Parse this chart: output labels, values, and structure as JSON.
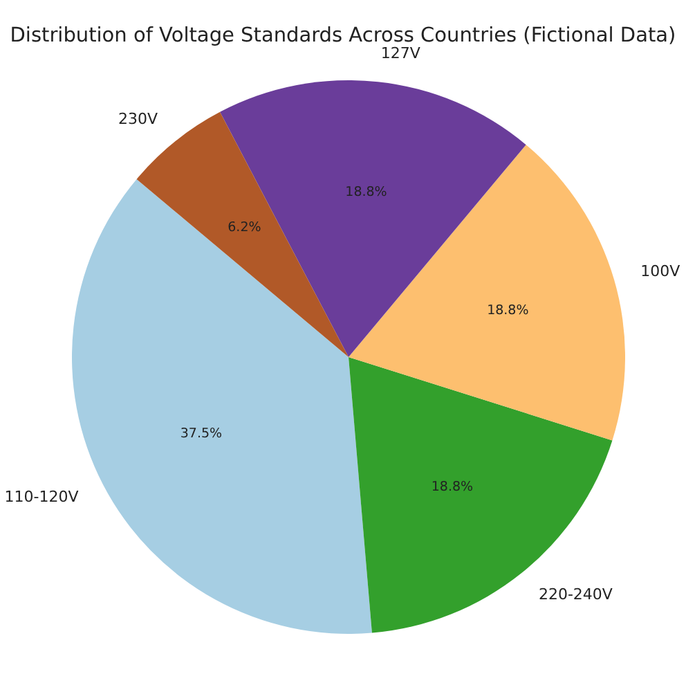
{
  "chart_data": {
    "type": "pie",
    "title": "Distribution of Voltage Standards Across Countries (Fictional Data)",
    "categories": [
      "110-120V",
      "220-240V",
      "100V",
      "127V",
      "230V"
    ],
    "values": [
      37.5,
      18.8,
      18.8,
      18.8,
      6.2
    ],
    "value_labels": [
      "37.5%",
      "18.8%",
      "18.8%",
      "18.8%",
      "6.2%"
    ],
    "colors": [
      "#a6cee3",
      "#33a02c",
      "#fdbf6f",
      "#6a3d9a",
      "#b15928"
    ]
  }
}
